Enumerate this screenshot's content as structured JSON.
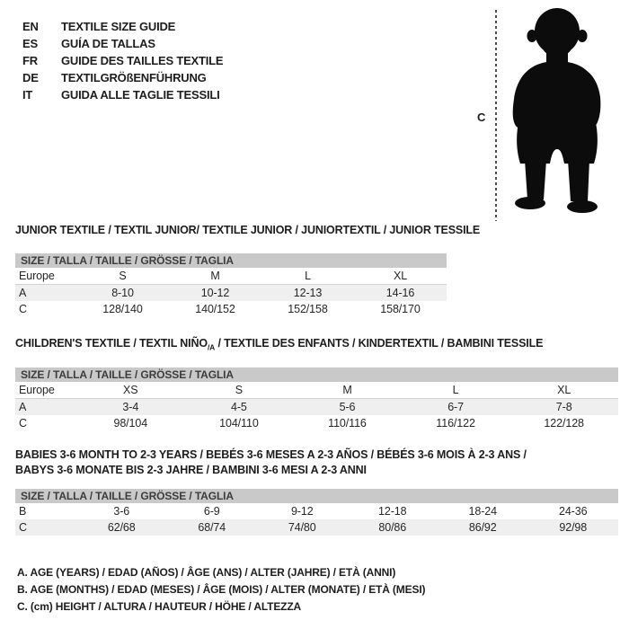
{
  "colors": {
    "background": "#ffffff",
    "text": "#1d1d1d",
    "table_header_bar": "#c9c9c9",
    "row_stripe": "#efefef",
    "silhouette": "#0c0c0c",
    "dash_line": "#4d4d4d"
  },
  "languages": {
    "items": [
      {
        "code": "EN",
        "title": "TEXTILE SIZE GUIDE"
      },
      {
        "code": "ES",
        "title": "GUÍA DE TALLAS"
      },
      {
        "code": "FR",
        "title": "GUIDE DES TAILLES TEXTILE"
      },
      {
        "code": "DE",
        "title": "TEXTILGRÖßENFÜHRUNG"
      },
      {
        "code": "IT",
        "title": "GUIDA ALLE TAGLIE TESSILI"
      }
    ]
  },
  "figure": {
    "label": "C",
    "icon": "toddler-silhouette-icon"
  },
  "sections": [
    {
      "title_lines": [
        [
          {
            "t": "JUNIOR TEXTILE / TEXTIL JUNIOR/ TEXTILE JUNIOR / JUNIORTEXTIL / JUNIOR TESSILE"
          }
        ]
      ],
      "size_header": "SIZE / TALLA / TAILLE / GRÖSSE / TAGLIA",
      "rows": [
        {
          "label": "Europe",
          "header": true,
          "striped": false,
          "values": [
            "S",
            "M",
            "L",
            "XL"
          ]
        },
        {
          "label": "A",
          "header": false,
          "striped": true,
          "values": [
            "8-10",
            "10-12",
            "12-13",
            "14-16"
          ]
        },
        {
          "label": "C",
          "header": false,
          "striped": false,
          "values": [
            "128/140",
            "140/152",
            "152/158",
            "158/170"
          ]
        }
      ]
    },
    {
      "title_lines": [
        [
          {
            "t": "CHILDREN'S TEXTILE / TEXTIL NIÑO"
          },
          {
            "t": "/A",
            "sub": true
          },
          {
            "t": " / TEXTILE DES ENFANTS / KINDERTEXTIL / BAMBINI TESSILE"
          }
        ]
      ],
      "size_header": "SIZE / TALLA / TAILLE / GRÖSSE / TAGLIA",
      "rows": [
        {
          "label": "Europe",
          "header": true,
          "striped": false,
          "values": [
            "XS",
            "S",
            "M",
            "L",
            "XL"
          ]
        },
        {
          "label": "A",
          "header": false,
          "striped": true,
          "values": [
            "3-4",
            "4-5",
            "5-6",
            "6-7",
            "7-8"
          ]
        },
        {
          "label": "C",
          "header": false,
          "striped": false,
          "values": [
            "98/104",
            "104/110",
            "110/116",
            "116/122",
            "122/128"
          ]
        }
      ]
    },
    {
      "title_lines": [
        [
          {
            "t": "BABIES 3-6 MONTH TO 2-3 YEARS / BEBÉS 3-6 MESES A 2-3 AÑOS / BÉBÉS 3-6 MOIS À 2-3 ANS /"
          }
        ],
        [
          {
            "t": "BABYS 3-6 MONATE BIS 2-3 JAHRE / BAMBINI 3-6 MESI A 2-3 ANNI"
          }
        ]
      ],
      "size_header": "SIZE / TALLA / TAILLE / GRÖSSE / TAGLIA",
      "rows": [
        {
          "label": "B",
          "header": false,
          "striped": false,
          "values": [
            "3-6",
            "6-9",
            "9-12",
            "12-18",
            "18-24",
            "24-36"
          ]
        },
        {
          "label": "C",
          "header": false,
          "striped": true,
          "values": [
            "62/68",
            "68/74",
            "74/80",
            "80/86",
            "86/92",
            "92/98"
          ]
        }
      ]
    }
  ],
  "footnotes": [
    "A. AGE (YEARS) / EDAD (AÑOS) / ÂGE (ANS) / ALTER (JAHRE) / ETÀ (ANNI)",
    "B. AGE (MONTHS) / EDAD (MESES) / ÂGE (MOIS) / ALTER (MONATE) / ETÀ (MESI)",
    "C. (cm) HEIGHT / ALTURA / HAUTEUR / HÖHE / ALTEZZA"
  ]
}
